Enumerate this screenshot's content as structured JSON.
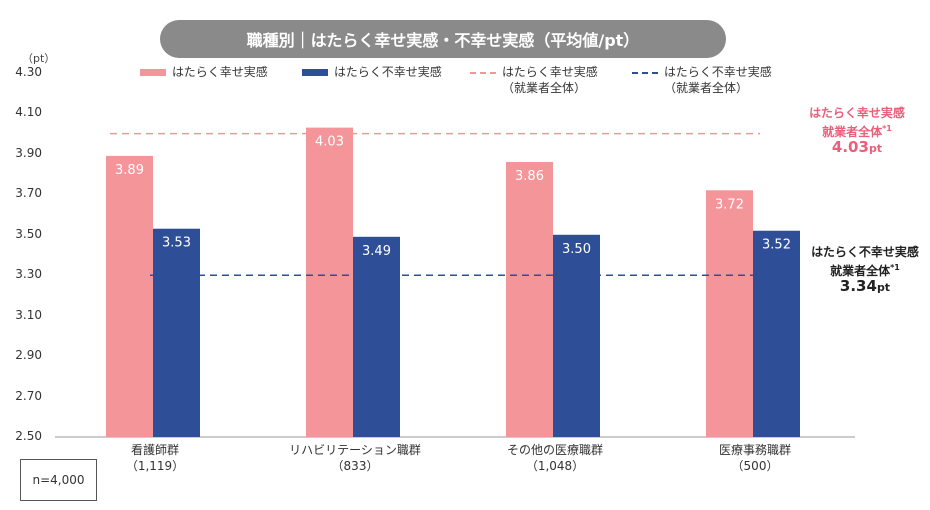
{
  "chart_data": {
    "type": "bar",
    "title": "職種別｜はたらく幸せ実感・不幸せ実感（平均値/pt）",
    "unit": "（pt）",
    "ylim": [
      2.5,
      4.3
    ],
    "yticks": [
      "4.30",
      "4.10",
      "3.90",
      "3.70",
      "3.50",
      "3.30",
      "3.10",
      "2.90",
      "2.70",
      "2.50"
    ],
    "categories": [
      "看護師群",
      "リハビリテーション職群",
      "その他の医療職群",
      "医療事務職群"
    ],
    "category_counts": [
      "（1,119）",
      "（833）",
      "（1,048）",
      "（500）"
    ],
    "series": [
      {
        "name": "はたらく幸せ実感",
        "color": "#f4959a",
        "values": [
          3.89,
          4.03,
          3.86,
          3.72
        ],
        "labels": [
          "3.89",
          "4.03",
          "3.86",
          "3.72"
        ]
      },
      {
        "name": "はたらく不幸せ実感",
        "color": "#2e4f97",
        "values": [
          3.53,
          3.49,
          3.5,
          3.52
        ],
        "labels": [
          "3.53",
          "3.49",
          "3.50",
          "3.52"
        ]
      }
    ],
    "reference_lines": [
      {
        "name": "はたらく幸せ実感",
        "sub": "（就業者全体）",
        "value": 4.0,
        "color": "#f4959a",
        "annotation": {
          "line1": "はたらく幸せ実感",
          "line2": "就業者全体",
          "mark": "*1",
          "value_text": "4.03",
          "unit": "pt"
        }
      },
      {
        "name": "はたらく不幸せ実感",
        "sub": "（就業者全体）",
        "value": 3.3,
        "color": "#2e4f97",
        "annotation": {
          "line1": "はたらく不幸せ実感",
          "line2": "就業者全体",
          "mark": "*1",
          "value_text": "3.34",
          "unit": "pt"
        }
      }
    ],
    "legend_position": "top"
  },
  "sample_size": "n=4,000"
}
